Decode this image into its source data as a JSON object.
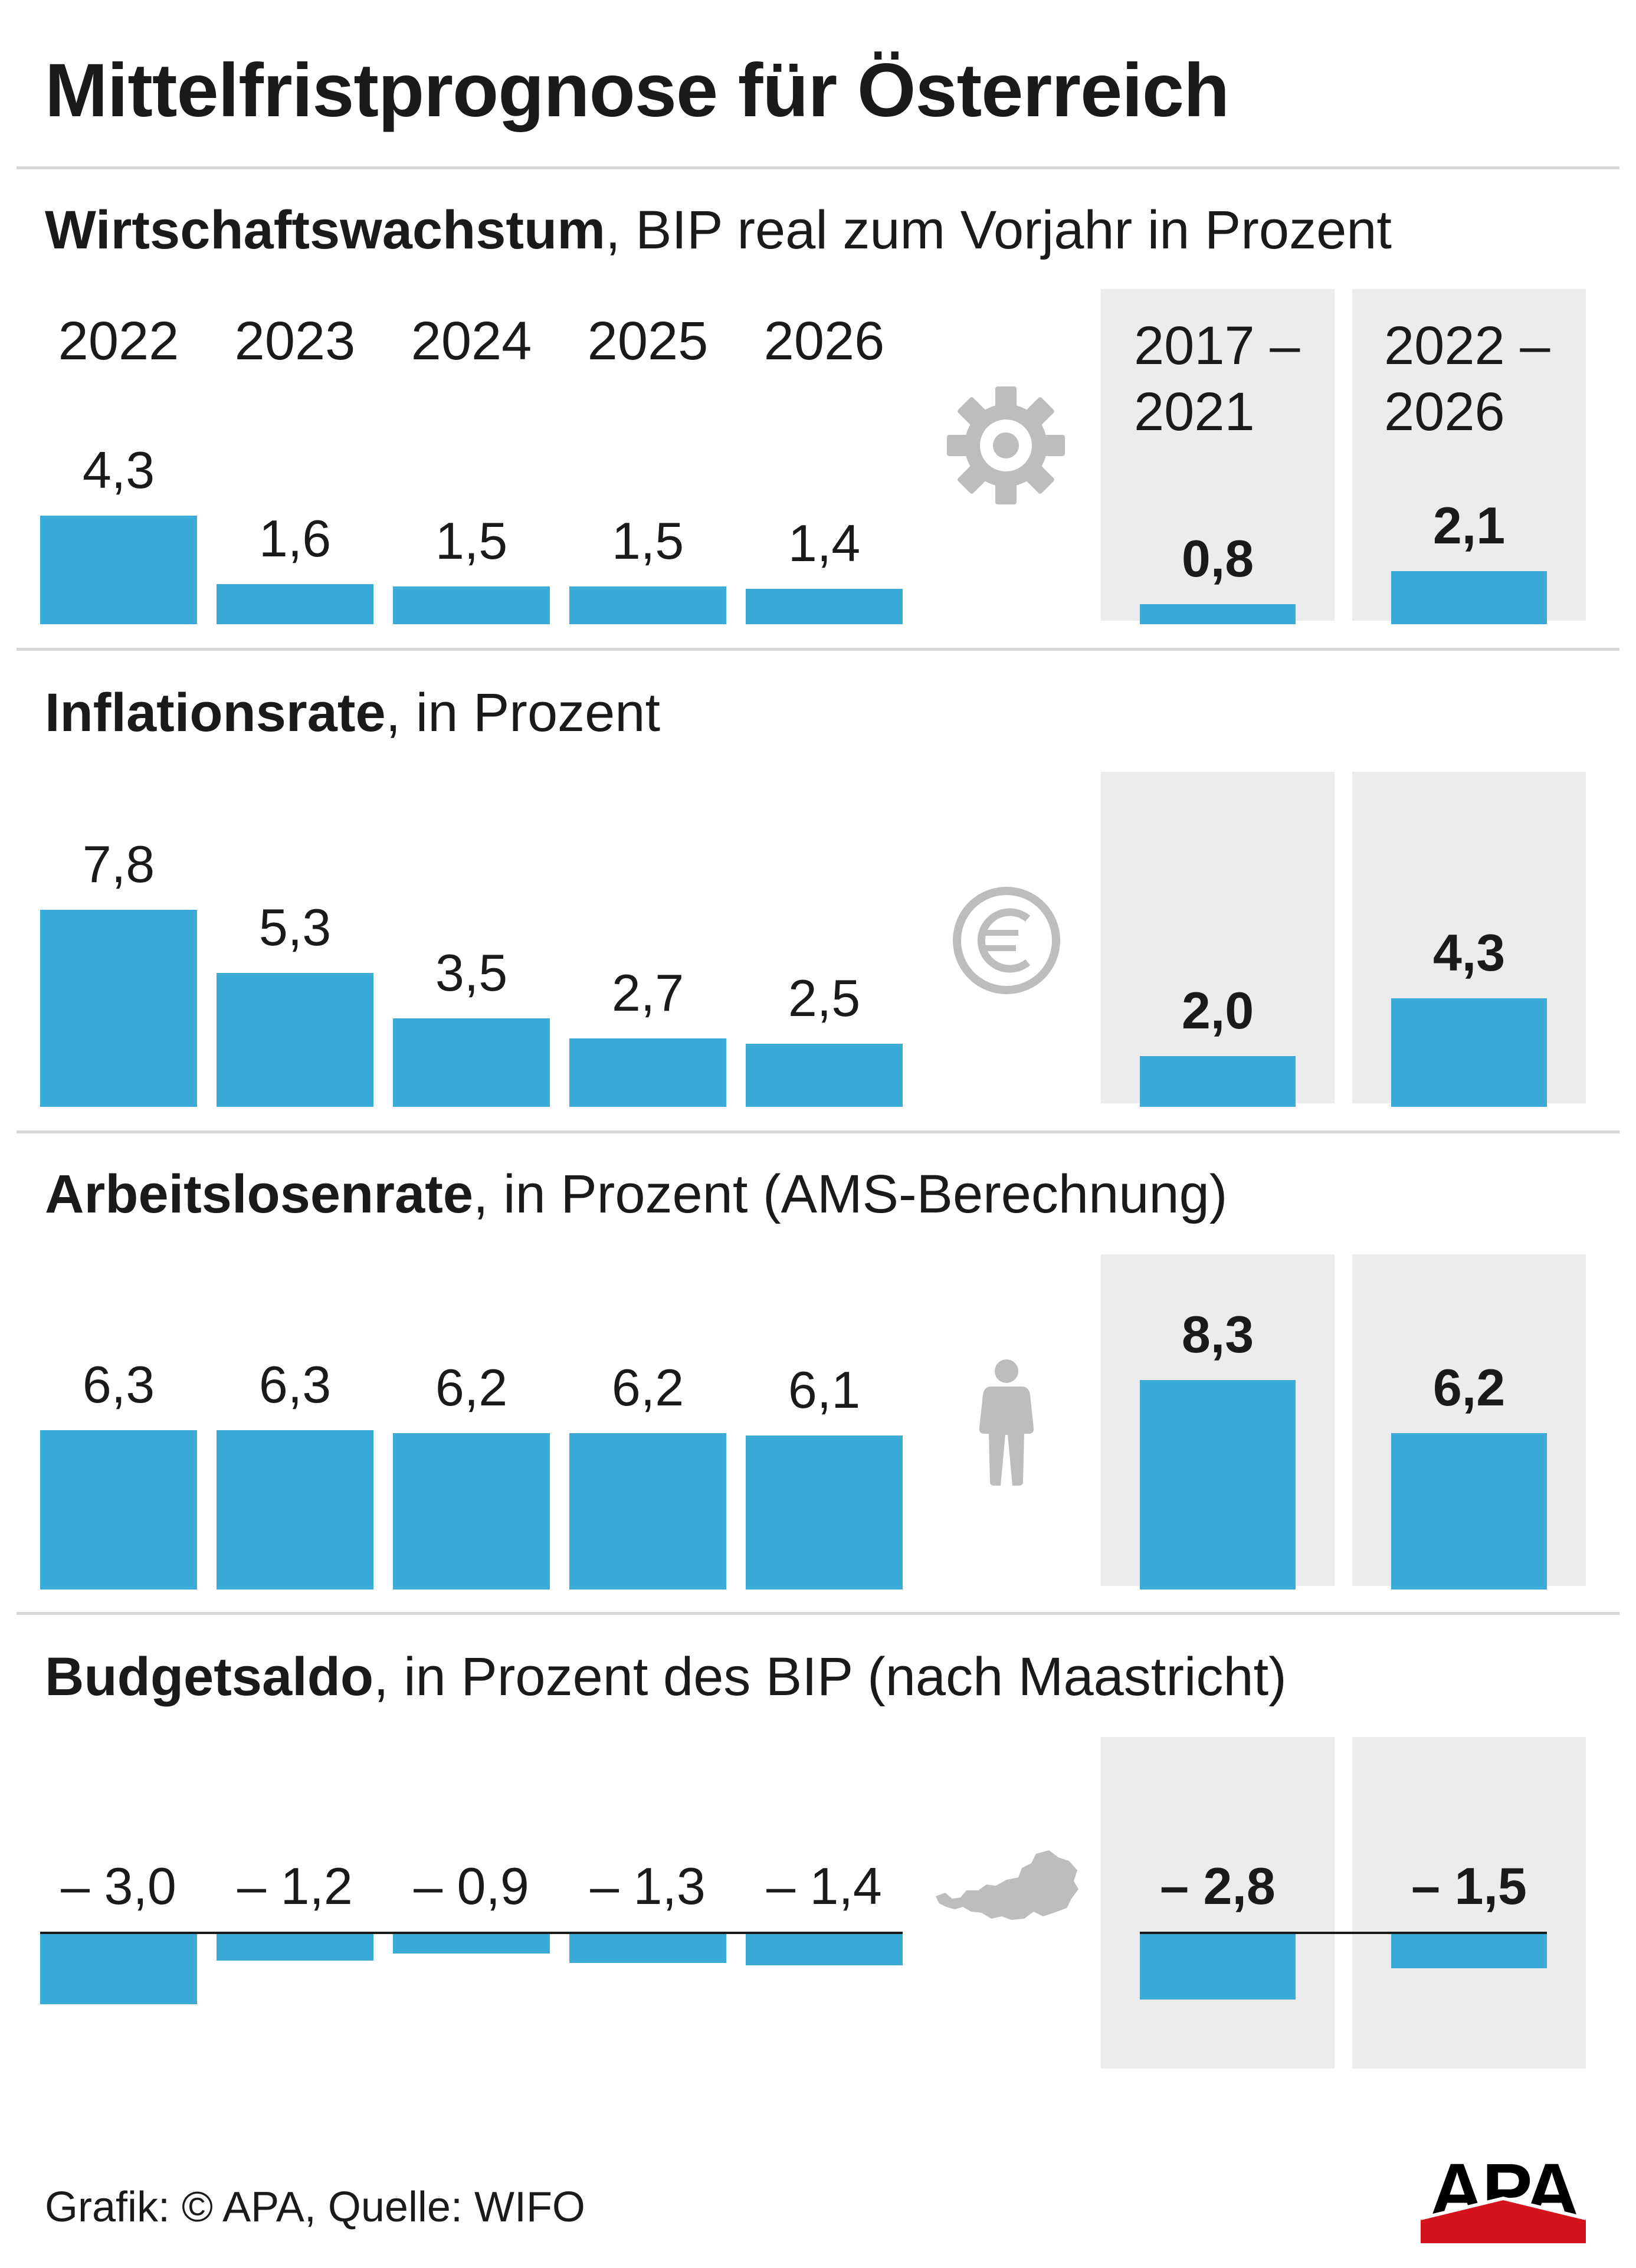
{
  "title": "Mittelfristprognose für Österreich",
  "source": "Grafik: © APA, Quelle: WIFO",
  "logo_text": "APA",
  "years": [
    "2022",
    "2023",
    "2024",
    "2025",
    "2026"
  ],
  "periods": [
    {
      "line1": "2017 –",
      "line2": "2021"
    },
    {
      "line1": "2022 –",
      "line2": "2026"
    }
  ],
  "colors": {
    "bar": "#3aaad8",
    "panel": "#ececec",
    "icon": "#bdbdbd",
    "text": "#1a1a1a",
    "rule": "#d6d6d6"
  },
  "chart_data": [
    {
      "type": "bar",
      "title_bold": "Wirtschaftswachstum",
      "title_rest": ", BIP real zum Vorjahr in Prozent",
      "icon": "gear-icon",
      "categories": [
        "2022",
        "2023",
        "2024",
        "2025",
        "2026"
      ],
      "values": [
        4.3,
        1.6,
        1.5,
        1.5,
        1.4
      ],
      "labels": [
        "4,3",
        "1,6",
        "1,5",
        "1,5",
        "1,4"
      ],
      "period_categories": [
        "2017 – 2021",
        "2022 – 2026"
      ],
      "period_values": [
        0.8,
        2.1
      ],
      "period_labels": [
        "0,8",
        "2,1"
      ]
    },
    {
      "type": "bar",
      "title_bold": "Inflationsrate",
      "title_rest": ", in Prozent",
      "icon": "euro-icon",
      "categories": [
        "2022",
        "2023",
        "2024",
        "2025",
        "2026"
      ],
      "values": [
        7.8,
        5.3,
        3.5,
        2.7,
        2.5
      ],
      "labels": [
        "7,8",
        "5,3",
        "3,5",
        "2,7",
        "2,5"
      ],
      "period_categories": [
        "2017 – 2021",
        "2022 – 2026"
      ],
      "period_values": [
        2.0,
        4.3
      ],
      "period_labels": [
        "2,0",
        "4,3"
      ]
    },
    {
      "type": "bar",
      "title_bold": "Arbeitslosenrate",
      "title_rest": ", in Prozent (AMS-Berechnung)",
      "icon": "person-icon",
      "categories": [
        "2022",
        "2023",
        "2024",
        "2025",
        "2026"
      ],
      "values": [
        6.3,
        6.3,
        6.2,
        6.2,
        6.1
      ],
      "labels": [
        "6,3",
        "6,3",
        "6,2",
        "6,2",
        "6,1"
      ],
      "period_categories": [
        "2017 – 2021",
        "2022 – 2026"
      ],
      "period_values": [
        8.3,
        6.2
      ],
      "period_labels": [
        "8,3",
        "6,2"
      ]
    },
    {
      "type": "bar",
      "title_bold": "Budgetsaldo",
      "title_rest": ", in Prozent des BIP (nach Maastricht)",
      "icon": "austria-map-icon",
      "categories": [
        "2022",
        "2023",
        "2024",
        "2025",
        "2026"
      ],
      "values": [
        -3.0,
        -1.2,
        -0.9,
        -1.3,
        -1.4
      ],
      "labels": [
        "– 3,0",
        "– 1,2",
        "– 0,9",
        "– 1,3",
        "– 1,4"
      ],
      "period_categories": [
        "2017 – 2021",
        "2022 – 2026"
      ],
      "period_values": [
        -2.8,
        -1.5
      ],
      "period_labels": [
        "– 2,8",
        "– 1,5"
      ]
    }
  ]
}
